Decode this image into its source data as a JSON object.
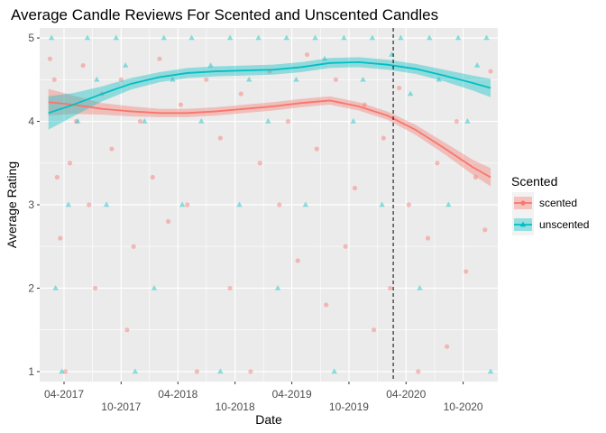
{
  "chart_data": {
    "type": "scatter",
    "title": "Average Candle Reviews For Scented and Unscented Candles",
    "xlabel": "Date",
    "ylabel": "Average Rating",
    "x_ticks": [
      "04-2017",
      "10-2017",
      "04-2018",
      "10-2018",
      "04-2019",
      "10-2019",
      "04-2020",
      "10-2020"
    ],
    "y_ticks": [
      1,
      2,
      3,
      4,
      5
    ],
    "xlim": [
      "2017-01-13",
      "2021-01-20"
    ],
    "ylim": [
      0.88,
      5.12
    ],
    "grid": true,
    "legend_position": "right",
    "vline": {
      "x": "2020-02-20",
      "style": "dashed"
    },
    "legend": {
      "title": "Scented",
      "entries": [
        "scented",
        "unscented"
      ]
    },
    "series": [
      {
        "name": "scented",
        "color": "#F8766D",
        "marker": "circle",
        "smooth": [
          {
            "x": "2017-02-10",
            "y": 4.23
          },
          {
            "x": "2017-05-01",
            "y": 4.2
          },
          {
            "x": "2017-08-01",
            "y": 4.15
          },
          {
            "x": "2017-11-01",
            "y": 4.12
          },
          {
            "x": "2018-02-01",
            "y": 4.1
          },
          {
            "x": "2018-05-01",
            "y": 4.1
          },
          {
            "x": "2018-08-01",
            "y": 4.12
          },
          {
            "x": "2018-11-01",
            "y": 4.15
          },
          {
            "x": "2019-02-01",
            "y": 4.18
          },
          {
            "x": "2019-05-01",
            "y": 4.22
          },
          {
            "x": "2019-08-01",
            "y": 4.25
          },
          {
            "x": "2019-11-01",
            "y": 4.18
          },
          {
            "x": "2020-02-01",
            "y": 4.07
          },
          {
            "x": "2020-05-01",
            "y": 3.9
          },
          {
            "x": "2020-08-01",
            "y": 3.68
          },
          {
            "x": "2020-11-01",
            "y": 3.45
          },
          {
            "x": "2020-12-28",
            "y": 3.33
          }
        ],
        "band_width": [
          0.16,
          0.11,
          0.07,
          0.06,
          0.05,
          0.05,
          0.05,
          0.05,
          0.05,
          0.05,
          0.05,
          0.05,
          0.05,
          0.06,
          0.07,
          0.09,
          0.11
        ],
        "points": [
          {
            "x": "2017-02-15",
            "y": 4.75
          },
          {
            "x": "2017-03-01",
            "y": 4.5
          },
          {
            "x": "2017-03-10",
            "y": 3.33
          },
          {
            "x": "2017-03-20",
            "y": 2.6
          },
          {
            "x": "2017-04-05",
            "y": 1.0
          },
          {
            "x": "2017-04-20",
            "y": 3.5
          },
          {
            "x": "2017-05-10",
            "y": 4.0
          },
          {
            "x": "2017-06-01",
            "y": 4.67
          },
          {
            "x": "2017-06-20",
            "y": 3.0
          },
          {
            "x": "2017-07-10",
            "y": 2.0
          },
          {
            "x": "2017-08-01",
            "y": 4.33
          },
          {
            "x": "2017-09-01",
            "y": 3.67
          },
          {
            "x": "2017-10-01",
            "y": 4.5
          },
          {
            "x": "2017-10-20",
            "y": 1.5
          },
          {
            "x": "2017-11-10",
            "y": 2.5
          },
          {
            "x": "2017-12-01",
            "y": 4.0
          },
          {
            "x": "2018-01-10",
            "y": 3.33
          },
          {
            "x": "2018-02-01",
            "y": 4.75
          },
          {
            "x": "2018-03-01",
            "y": 2.8
          },
          {
            "x": "2018-04-10",
            "y": 4.2
          },
          {
            "x": "2018-05-01",
            "y": 3.0
          },
          {
            "x": "2018-06-01",
            "y": 1.0
          },
          {
            "x": "2018-07-01",
            "y": 4.5
          },
          {
            "x": "2018-08-15",
            "y": 3.8
          },
          {
            "x": "2018-09-15",
            "y": 2.0
          },
          {
            "x": "2018-10-20",
            "y": 4.33
          },
          {
            "x": "2018-11-20",
            "y": 1.0
          },
          {
            "x": "2018-12-20",
            "y": 3.5
          },
          {
            "x": "2019-01-20",
            "y": 4.6
          },
          {
            "x": "2019-02-20",
            "y": 3.0
          },
          {
            "x": "2019-03-20",
            "y": 4.0
          },
          {
            "x": "2019-04-20",
            "y": 2.33
          },
          {
            "x": "2019-05-20",
            "y": 4.8
          },
          {
            "x": "2019-06-20",
            "y": 3.67
          },
          {
            "x": "2019-07-20",
            "y": 1.8
          },
          {
            "x": "2019-08-20",
            "y": 4.5
          },
          {
            "x": "2019-09-20",
            "y": 2.5
          },
          {
            "x": "2019-10-20",
            "y": 3.2
          },
          {
            "x": "2019-11-20",
            "y": 4.2
          },
          {
            "x": "2019-12-20",
            "y": 1.5
          },
          {
            "x": "2020-01-20",
            "y": 3.8
          },
          {
            "x": "2020-02-10",
            "y": 2.0
          },
          {
            "x": "2020-03-10",
            "y": 4.4
          },
          {
            "x": "2020-04-10",
            "y": 3.0
          },
          {
            "x": "2020-05-10",
            "y": 1.0
          },
          {
            "x": "2020-06-10",
            "y": 2.6
          },
          {
            "x": "2020-07-10",
            "y": 3.5
          },
          {
            "x": "2020-08-10",
            "y": 1.3
          },
          {
            "x": "2020-09-10",
            "y": 4.0
          },
          {
            "x": "2020-10-10",
            "y": 2.2
          },
          {
            "x": "2020-11-10",
            "y": 3.33
          },
          {
            "x": "2020-12-10",
            "y": 2.7
          },
          {
            "x": "2020-12-28",
            "y": 4.6
          }
        ]
      },
      {
        "name": "unscented",
        "color": "#00BFC4",
        "marker": "triangle",
        "smooth": [
          {
            "x": "2017-02-10",
            "y": 4.1
          },
          {
            "x": "2017-05-01",
            "y": 4.2
          },
          {
            "x": "2017-08-01",
            "y": 4.33
          },
          {
            "x": "2017-11-01",
            "y": 4.45
          },
          {
            "x": "2018-02-01",
            "y": 4.53
          },
          {
            "x": "2018-05-01",
            "y": 4.58
          },
          {
            "x": "2018-08-01",
            "y": 4.6
          },
          {
            "x": "2018-11-01",
            "y": 4.61
          },
          {
            "x": "2019-02-01",
            "y": 4.62
          },
          {
            "x": "2019-05-01",
            "y": 4.65
          },
          {
            "x": "2019-08-01",
            "y": 4.7
          },
          {
            "x": "2019-11-01",
            "y": 4.71
          },
          {
            "x": "2020-02-01",
            "y": 4.68
          },
          {
            "x": "2020-05-01",
            "y": 4.63
          },
          {
            "x": "2020-08-01",
            "y": 4.55
          },
          {
            "x": "2020-11-01",
            "y": 4.46
          },
          {
            "x": "2020-12-28",
            "y": 4.4
          }
        ],
        "band_width": [
          0.2,
          0.14,
          0.09,
          0.07,
          0.06,
          0.06,
          0.06,
          0.06,
          0.06,
          0.06,
          0.06,
          0.06,
          0.06,
          0.06,
          0.07,
          0.09,
          0.11
        ],
        "points": [
          {
            "x": "2017-02-20",
            "y": 5.0
          },
          {
            "x": "2017-03-05",
            "y": 2.0
          },
          {
            "x": "2017-03-25",
            "y": 1.0
          },
          {
            "x": "2017-04-15",
            "y": 3.0
          },
          {
            "x": "2017-05-15",
            "y": 4.0
          },
          {
            "x": "2017-06-15",
            "y": 5.0
          },
          {
            "x": "2017-07-15",
            "y": 4.5
          },
          {
            "x": "2017-08-15",
            "y": 3.0
          },
          {
            "x": "2017-09-15",
            "y": 5.0
          },
          {
            "x": "2017-10-15",
            "y": 4.67
          },
          {
            "x": "2017-11-15",
            "y": 1.0
          },
          {
            "x": "2017-12-15",
            "y": 4.0
          },
          {
            "x": "2018-01-15",
            "y": 2.0
          },
          {
            "x": "2018-02-15",
            "y": 5.0
          },
          {
            "x": "2018-03-15",
            "y": 4.5
          },
          {
            "x": "2018-04-15",
            "y": 3.0
          },
          {
            "x": "2018-05-15",
            "y": 5.0
          },
          {
            "x": "2018-06-15",
            "y": 4.0
          },
          {
            "x": "2018-07-15",
            "y": 4.67
          },
          {
            "x": "2018-08-15",
            "y": 1.0
          },
          {
            "x": "2018-09-15",
            "y": 5.0
          },
          {
            "x": "2018-10-15",
            "y": 3.0
          },
          {
            "x": "2018-11-15",
            "y": 4.5
          },
          {
            "x": "2018-12-15",
            "y": 5.0
          },
          {
            "x": "2019-01-15",
            "y": 4.0
          },
          {
            "x": "2019-02-15",
            "y": 2.0
          },
          {
            "x": "2019-03-15",
            "y": 5.0
          },
          {
            "x": "2019-04-15",
            "y": 4.5
          },
          {
            "x": "2019-05-15",
            "y": 3.0
          },
          {
            "x": "2019-06-15",
            "y": 5.0
          },
          {
            "x": "2019-07-15",
            "y": 4.75
          },
          {
            "x": "2019-08-15",
            "y": 1.0
          },
          {
            "x": "2019-09-15",
            "y": 5.0
          },
          {
            "x": "2019-10-15",
            "y": 4.0
          },
          {
            "x": "2019-11-15",
            "y": 4.5
          },
          {
            "x": "2019-12-15",
            "y": 5.0
          },
          {
            "x": "2020-01-15",
            "y": 3.0
          },
          {
            "x": "2020-02-15",
            "y": 4.8
          },
          {
            "x": "2020-03-15",
            "y": 5.0
          },
          {
            "x": "2020-04-15",
            "y": 4.33
          },
          {
            "x": "2020-05-15",
            "y": 2.0
          },
          {
            "x": "2020-06-15",
            "y": 5.0
          },
          {
            "x": "2020-07-15",
            "y": 4.5
          },
          {
            "x": "2020-08-15",
            "y": 3.0
          },
          {
            "x": "2020-09-15",
            "y": 5.0
          },
          {
            "x": "2020-10-15",
            "y": 4.0
          },
          {
            "x": "2020-11-15",
            "y": 4.67
          },
          {
            "x": "2020-12-15",
            "y": 5.0
          },
          {
            "x": "2020-12-28",
            "y": 1.0
          }
        ]
      }
    ]
  }
}
